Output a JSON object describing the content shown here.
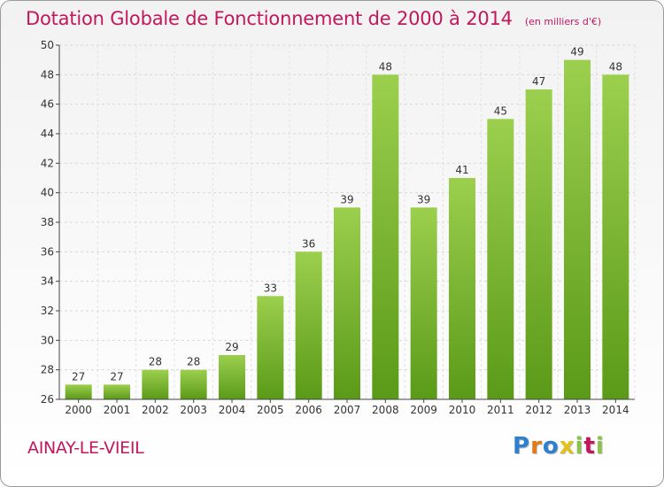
{
  "header": {
    "title": "Dotation Globale de Fonctionnement de 2000 à 2014",
    "unit": "(en milliers d'€)"
  },
  "footer": {
    "place": "AINAY-LE-VIEIL",
    "brand": "Proxiti",
    "brand_colors": [
      "#2f7fd0",
      "#e07a1a",
      "#2f7fd0",
      "#e0c21a",
      "#8bc34a",
      "#c2185b",
      "#8bc34a"
    ]
  },
  "chart_data": {
    "type": "bar",
    "categories": [
      "2000",
      "2001",
      "2002",
      "2003",
      "2004",
      "2005",
      "2006",
      "2007",
      "2008",
      "2009",
      "2010",
      "2011",
      "2012",
      "2013",
      "2014"
    ],
    "values": [
      27,
      27,
      28,
      28,
      29,
      33,
      36,
      39,
      48,
      39,
      41,
      45,
      47,
      49,
      48
    ],
    "ylim": [
      26,
      50
    ],
    "yticks": [
      26,
      28,
      30,
      32,
      34,
      36,
      38,
      40,
      42,
      44,
      46,
      48,
      50
    ],
    "grid": true,
    "colors": {
      "bar_top": "#9ccf4e",
      "bar_bottom": "#5a9a18",
      "text": "#c2185b",
      "axis": "#444444"
    }
  }
}
